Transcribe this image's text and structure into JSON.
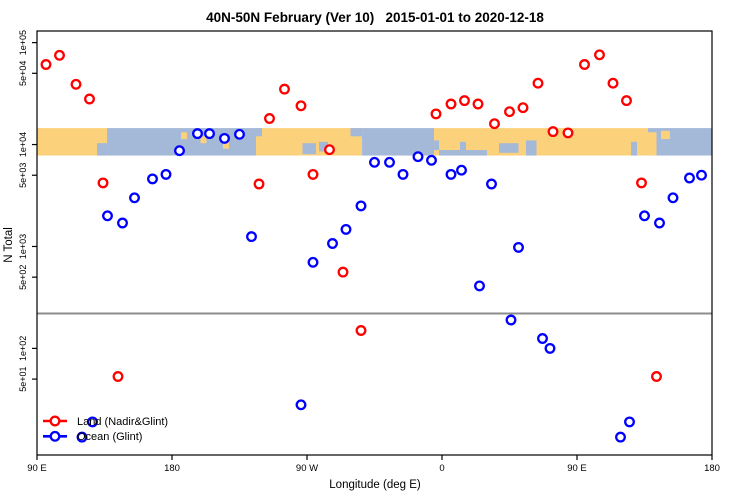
{
  "title": "40N-50N February (Ver 10)   2015-01-01 to 2020-12-18",
  "legend": {
    "items": [
      {
        "label": "Land (Nadir&Glint)",
        "color": "#FF0000"
      },
      {
        "label": "Ocean (Glint)",
        "color": "#0000FF"
      }
    ]
  },
  "chart_data": {
    "type": "scatter",
    "title": "40N-50N February (Ver 10)   2015-01-01 to 2020-12-18",
    "xlabel": "Longitude (deg E)",
    "ylabel": "N Total",
    "grid": false,
    "legend_position": "bottom-left",
    "x_axis": {
      "range": [
        90,
        540
      ],
      "ticks": [
        {
          "pos": 90,
          "label": "90 E"
        },
        {
          "pos": 180,
          "label": "180"
        },
        {
          "pos": 270,
          "label": "90 W"
        },
        {
          "pos": 360,
          "label": "0"
        },
        {
          "pos": 450,
          "label": "90 E"
        },
        {
          "pos": 540,
          "label": "180"
        }
      ]
    },
    "y_axis": {
      "scale": "log",
      "range": [
        9,
        130000
      ],
      "ticks": [
        {
          "value": 100000,
          "label": "1e+05"
        },
        {
          "value": 50000,
          "label": "5e+04"
        },
        {
          "value": 10000,
          "label": "1e+04"
        },
        {
          "value": 5000,
          "label": "5e+03"
        },
        {
          "value": 1000,
          "label": "1e+03"
        },
        {
          "value": 500,
          "label": "5e+02"
        },
        {
          "value": 100,
          "label": "1e+02"
        },
        {
          "value": 50,
          "label": "5e+01"
        }
      ]
    },
    "reference_line": {
      "value": 220,
      "color": "#8C8C8C"
    },
    "map_band": {
      "value_top": 14500,
      "value_bottom": 7800,
      "land_color": "#FBD27B",
      "ocean_color": "#A4B8D8",
      "segments": [
        {
          "from": 90,
          "to": 136.7,
          "type": "land"
        },
        {
          "from": 136.7,
          "to": 236,
          "type": "ocean"
        },
        {
          "from": 236,
          "to": 306.7,
          "type": "land"
        },
        {
          "from": 306.7,
          "to": 354.7,
          "type": "ocean"
        },
        {
          "from": 354.7,
          "to": 497.3,
          "type": "land"
        },
        {
          "from": 497.3,
          "to": 540,
          "type": "ocean"
        }
      ],
      "details": [
        {
          "name": "sea-of-japan",
          "from": 130,
          "to": 136.7,
          "top": 0.55,
          "bottom": 1.0,
          "type": "ocean"
        },
        {
          "name": "juan-de-fuca",
          "from": 236,
          "to": 240,
          "top": 0.0,
          "bottom": 0.3,
          "type": "ocean"
        },
        {
          "name": "great-lakes-west",
          "from": 267,
          "to": 276,
          "top": 0.55,
          "bottom": 0.95,
          "type": "ocean"
        },
        {
          "name": "great-lakes-east",
          "from": 278,
          "to": 284,
          "top": 0.5,
          "bottom": 0.85,
          "type": "ocean"
        },
        {
          "name": "gulf-st-lawrence",
          "from": 299,
          "to": 306.7,
          "top": 0.0,
          "bottom": 0.3,
          "type": "ocean"
        },
        {
          "name": "biscay",
          "from": 354.7,
          "to": 358,
          "top": 0.45,
          "bottom": 0.8,
          "type": "ocean"
        },
        {
          "name": "mediterranean",
          "from": 358,
          "to": 390,
          "top": 0.8,
          "bottom": 1.0,
          "type": "ocean"
        },
        {
          "name": "adriatic",
          "from": 372,
          "to": 376,
          "top": 0.5,
          "bottom": 1.0,
          "type": "ocean"
        },
        {
          "name": "black-sea",
          "from": 398,
          "to": 411,
          "top": 0.55,
          "bottom": 0.9,
          "type": "ocean"
        },
        {
          "name": "caspian",
          "from": 416,
          "to": 423,
          "top": 0.45,
          "bottom": 1.0,
          "type": "ocean"
        },
        {
          "name": "sea-of-japan-2",
          "from": 486,
          "to": 490,
          "top": 0.5,
          "bottom": 1.0,
          "type": "ocean"
        },
        {
          "name": "aleutians-1",
          "from": 186,
          "to": 190,
          "top": 0.15,
          "bottom": 0.4,
          "type": "land"
        },
        {
          "name": "aleutians-2",
          "from": 199,
          "to": 203,
          "top": 0.3,
          "bottom": 0.55,
          "type": "land"
        },
        {
          "name": "aleutians-3",
          "from": 214,
          "to": 218,
          "top": 0.5,
          "bottom": 0.75,
          "type": "land"
        },
        {
          "name": "hokkaido",
          "from": 497.3,
          "to": 503,
          "top": 0.15,
          "bottom": 1.0,
          "type": "land"
        },
        {
          "name": "kurils",
          "from": 506,
          "to": 512,
          "top": 0.1,
          "bottom": 0.4,
          "type": "land"
        }
      ]
    },
    "series": [
      {
        "name": "Land (Nadir&Glint)",
        "color": "#FF0000",
        "points": [
          [
            96,
            61000
          ],
          [
            105,
            75000
          ],
          [
            116,
            39000
          ],
          [
            125,
            28000
          ],
          [
            134,
            4200
          ],
          [
            144,
            53
          ],
          [
            238,
            4100
          ],
          [
            245,
            18000
          ],
          [
            255,
            35000
          ],
          [
            266,
            24000
          ],
          [
            274,
            5100
          ],
          [
            285,
            8900
          ],
          [
            294,
            560
          ],
          [
            306,
            150
          ],
          [
            356,
            20000
          ],
          [
            366,
            25000
          ],
          [
            375,
            27000
          ],
          [
            384,
            25000
          ],
          [
            395,
            16000
          ],
          [
            405,
            21000
          ],
          [
            414,
            23000
          ],
          [
            424,
            40000
          ],
          [
            434,
            13400
          ],
          [
            444,
            13000
          ],
          [
            455,
            61000
          ],
          [
            465,
            76000
          ],
          [
            474,
            40000
          ],
          [
            483,
            27000
          ],
          [
            493,
            4200
          ],
          [
            503,
            53
          ]
        ]
      },
      {
        "name": "Ocean (Glint)",
        "color": "#0000FF",
        "points": [
          [
            120,
            13.5
          ],
          [
            127,
            19
          ],
          [
            137,
            2000
          ],
          [
            147,
            1700
          ],
          [
            155,
            3000
          ],
          [
            167,
            4600
          ],
          [
            176,
            5100
          ],
          [
            185,
            8700
          ],
          [
            197,
            12800
          ],
          [
            205,
            12800
          ],
          [
            215,
            11500
          ],
          [
            225,
            12600
          ],
          [
            233,
            1250
          ],
          [
            266,
            28
          ],
          [
            274,
            700
          ],
          [
            287,
            1070
          ],
          [
            296,
            1470
          ],
          [
            306,
            2500
          ],
          [
            315,
            6700
          ],
          [
            325,
            6700
          ],
          [
            334,
            5100
          ],
          [
            344,
            7600
          ],
          [
            353,
            7000
          ],
          [
            366,
            5100
          ],
          [
            373,
            5600
          ],
          [
            385,
            410
          ],
          [
            393,
            4100
          ],
          [
            406,
            190
          ],
          [
            411,
            980
          ],
          [
            427,
            125
          ],
          [
            432,
            100
          ],
          [
            479,
            13.5
          ],
          [
            485,
            19
          ],
          [
            495,
            2000
          ],
          [
            505,
            1700
          ],
          [
            514,
            3000
          ],
          [
            525,
            4700
          ],
          [
            533,
            5000
          ]
        ]
      }
    ]
  }
}
